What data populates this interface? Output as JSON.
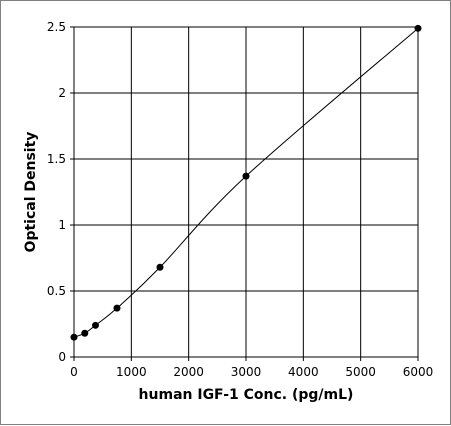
{
  "chart_data": {
    "type": "scatter",
    "xlabel": "human IGF-1 Conc. (pg/mL)",
    "ylabel": "Optical Density",
    "xlim": [
      0,
      6000
    ],
    "ylim": [
      0,
      2.5
    ],
    "x_ticks": [
      0,
      1000,
      2000,
      3000,
      4000,
      5000,
      6000
    ],
    "y_ticks": [
      0,
      0.5,
      1,
      1.5,
      2,
      2.5
    ],
    "x_tick_labels": [
      "0",
      "1000",
      "2000",
      "3000",
      "4000",
      "5000",
      "6000"
    ],
    "y_tick_labels": [
      "0",
      "0.5",
      "1",
      "1.5",
      "2",
      "2.5"
    ],
    "grid": true,
    "legend": "none",
    "series": [
      {
        "x": [
          0,
          188,
          375,
          750,
          1500,
          3000,
          6000
        ],
        "y": [
          0.15,
          0.18,
          0.24,
          0.37,
          0.68,
          1.37,
          2.49
        ],
        "marker": "circle",
        "fit_curve": true
      }
    ],
    "colors": {
      "marker": "#000000",
      "curve": "#000000",
      "grid": "#000000"
    }
  }
}
